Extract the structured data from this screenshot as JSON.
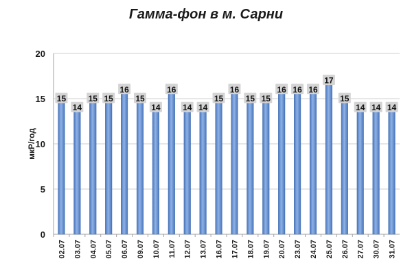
{
  "chart_data": {
    "type": "bar",
    "title": "Гамма-фон в м. Сарни",
    "xlabel": "",
    "ylabel": "мкР/год",
    "ylim": [
      0,
      20
    ],
    "yticks": [
      0,
      5,
      10,
      15,
      20
    ],
    "grid": true,
    "legend": "none",
    "categories": [
      "02.07",
      "03.07",
      "04.07",
      "05.07",
      "06.07",
      "09.07",
      "10.07",
      "11.07",
      "12.07",
      "13.07",
      "16.07",
      "17.07",
      "18.07",
      "19.07",
      "20.07",
      "23.07",
      "24.07",
      "25.07",
      "26.07",
      "27.07",
      "30.07",
      "31.07"
    ],
    "values": [
      15,
      14,
      15,
      15,
      16,
      15,
      14,
      16,
      14,
      14,
      15,
      16,
      15,
      15,
      16,
      16,
      16,
      17,
      15,
      14,
      14,
      14
    ],
    "colors": {
      "bar": "#6f9ad6",
      "bar_dark": "#3e6bb0",
      "label_box": "#d4d4d4",
      "grid": "#cfcfcf",
      "axis": "#a0a0a0"
    }
  }
}
